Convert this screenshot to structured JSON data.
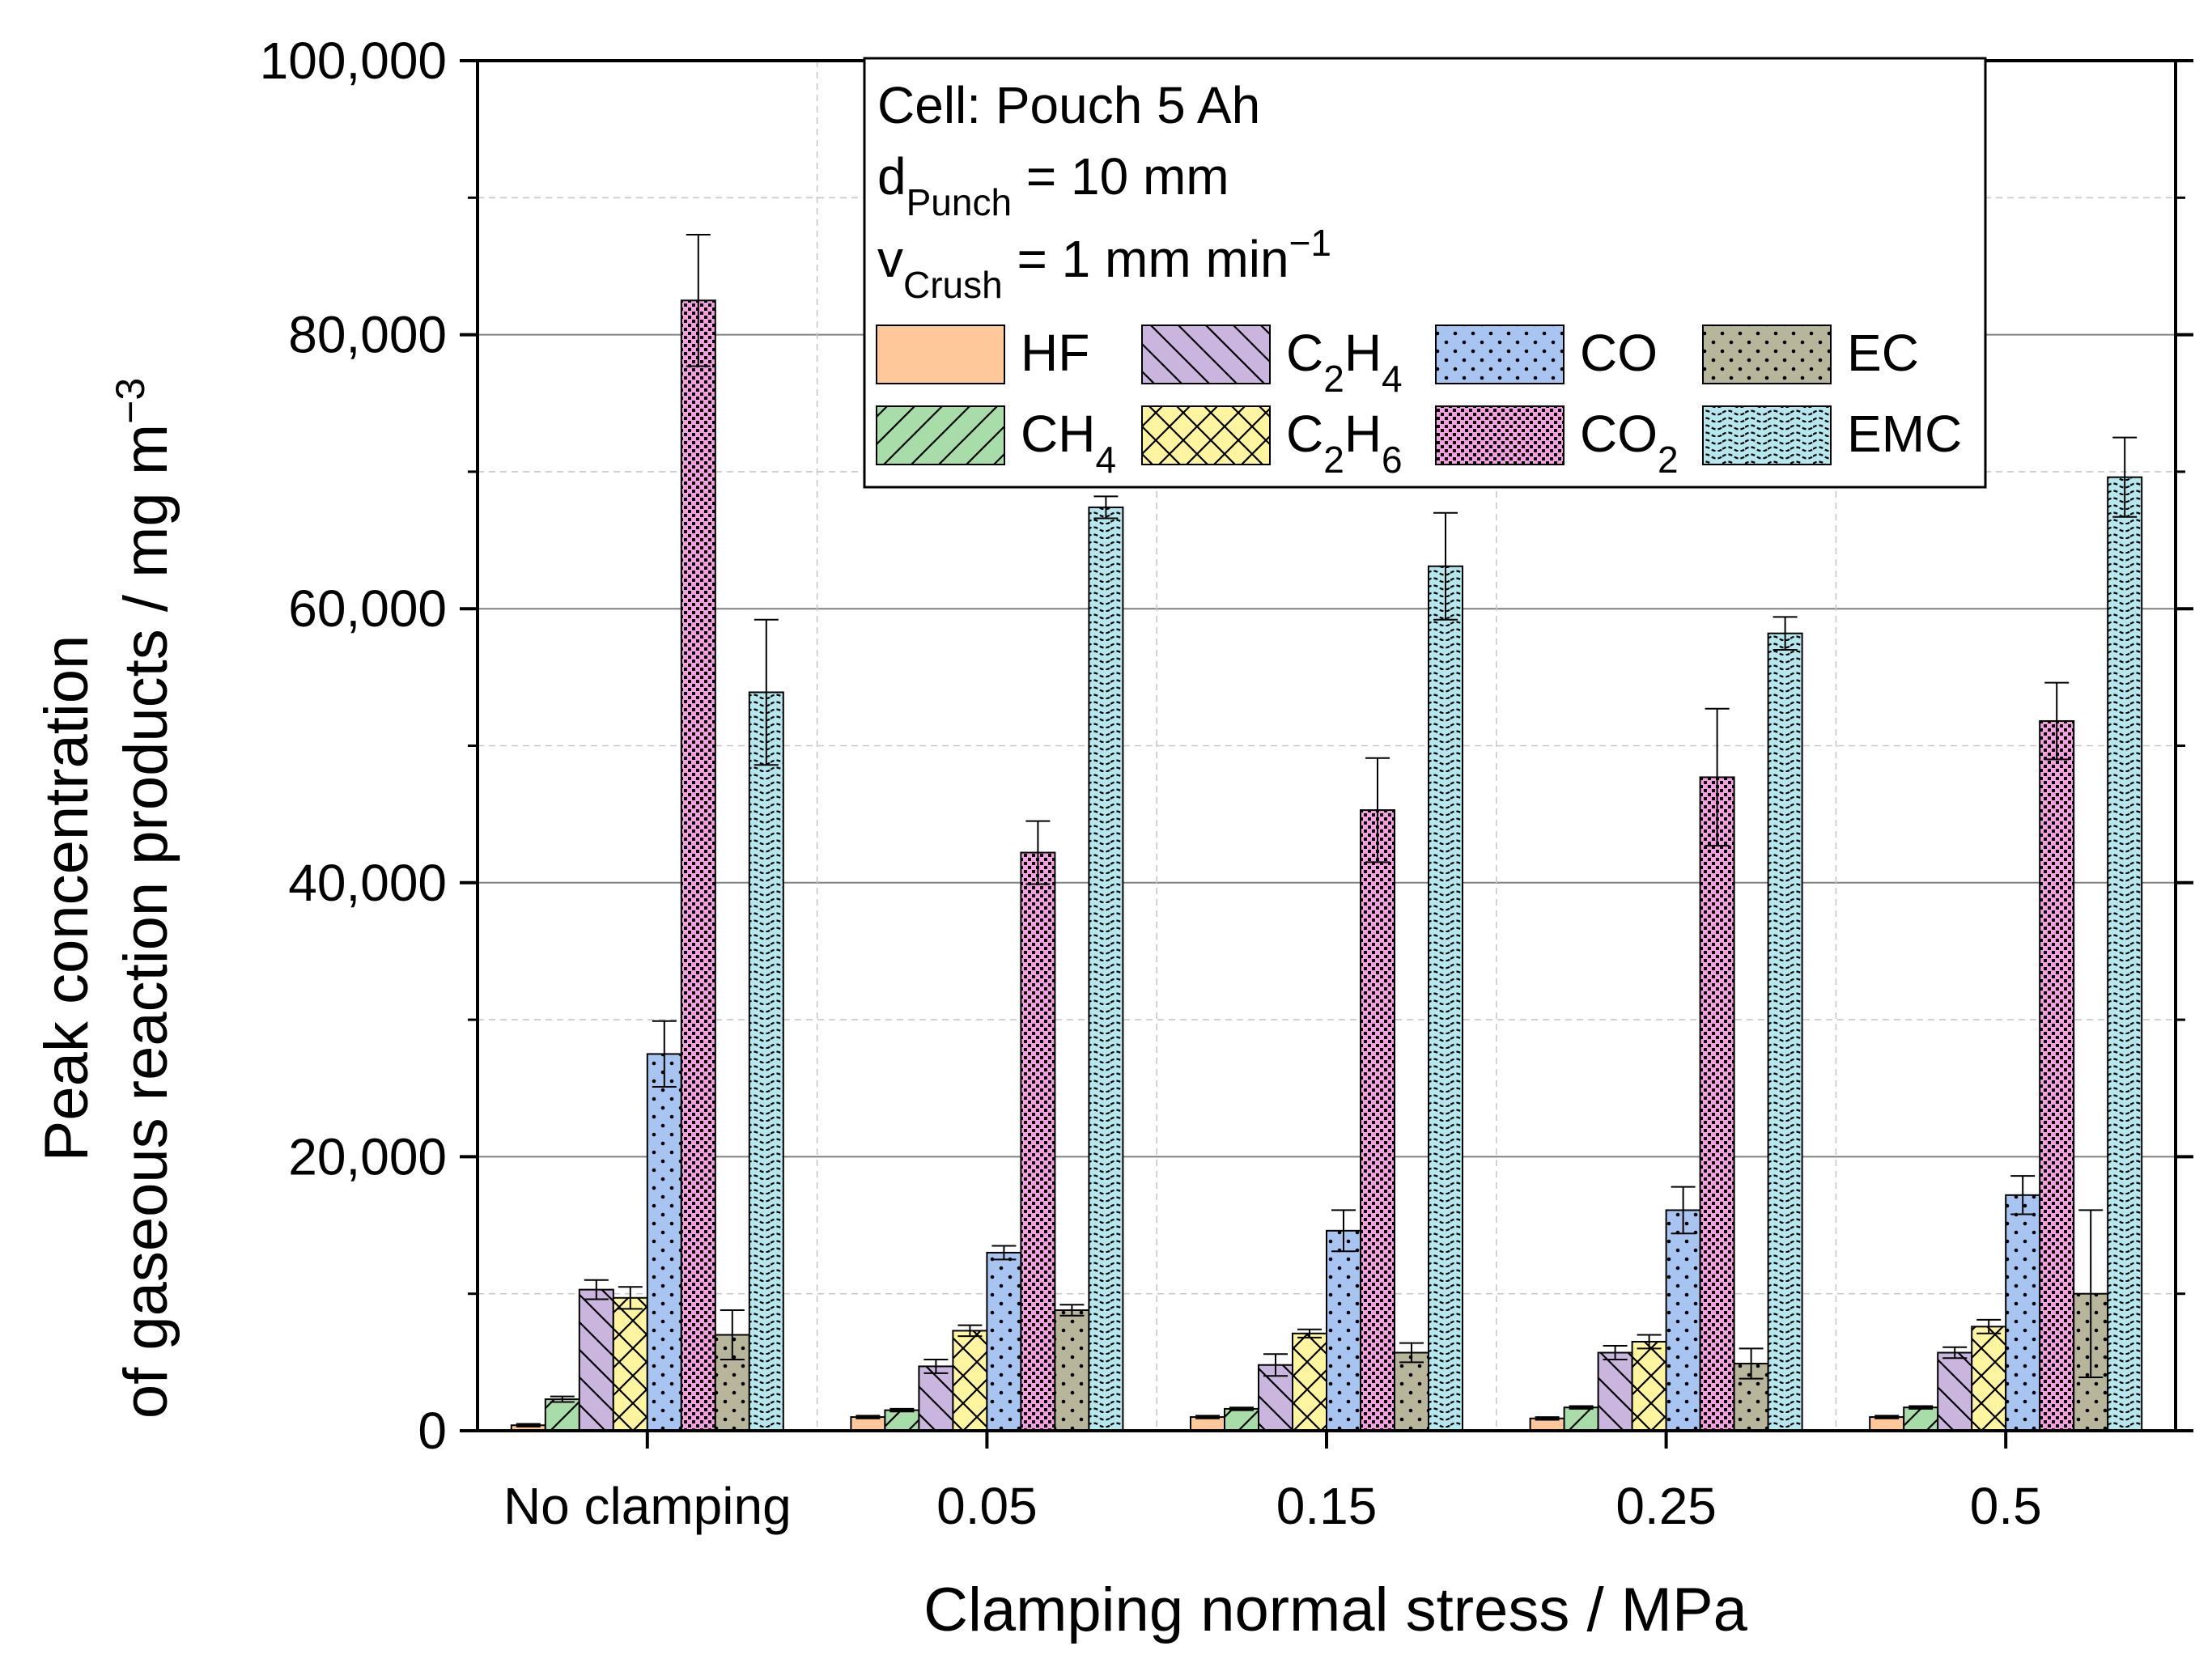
{
  "chart_data": {
    "type": "bar",
    "xlabel": "Clamping normal stress / MPa",
    "ylabel_line1": "Peak concentration",
    "ylabel_line2_prefix": "of gaseous reaction products / mg m",
    "ylabel_line2_sup": "−3",
    "ylim": [
      0,
      100000
    ],
    "yticks": [
      0,
      20000,
      40000,
      60000,
      80000,
      100000
    ],
    "ytick_labels": [
      "0",
      "20,000",
      "40,000",
      "60,000",
      "80,000",
      "100,000"
    ],
    "categories": [
      "No clamping",
      "0.05",
      "0.15",
      "0.25",
      "0.5"
    ],
    "grid": true,
    "legend_position": "top",
    "annotation": {
      "line1": "Cell: Pouch 5 Ah",
      "line2_base": "d",
      "line2_sub": "Punch",
      "line2_rest": " = 10 mm",
      "line3_base": "v",
      "line3_sub": "Crush",
      "line3_rest": " = 1 mm min",
      "line3_sup": "−1"
    },
    "series": [
      {
        "name": "HF",
        "label_base": "HF",
        "label_sub": "",
        "color": "#FFC89A",
        "pattern": "none",
        "values": [
          400,
          1000,
          1000,
          900,
          1000
        ],
        "errors": [
          100,
          100,
          100,
          100,
          100
        ]
      },
      {
        "name": "CH4",
        "label_base": "CH",
        "label_sub": "4",
        "color": "#A8DCA8",
        "pattern": "fwd",
        "values": [
          2300,
          1500,
          1600,
          1700,
          1700
        ],
        "errors": [
          200,
          100,
          100,
          100,
          100
        ]
      },
      {
        "name": "C2H4",
        "label_base": "C",
        "label_sub": "2",
        "label_base2": "H",
        "label_sub2": "4",
        "color": "#C9B5DD",
        "pattern": "back",
        "values": [
          10300,
          4700,
          4800,
          5700,
          5700
        ],
        "errors": [
          700,
          500,
          800,
          500,
          400
        ]
      },
      {
        "name": "C2H6",
        "label_base": "C",
        "label_sub": "2",
        "label_base2": "H",
        "label_sub2": "6",
        "color": "#FFF4A0",
        "pattern": "cross",
        "values": [
          9700,
          7300,
          7100,
          6500,
          7600
        ],
        "errors": [
          800,
          400,
          300,
          500,
          500
        ]
      },
      {
        "name": "CO",
        "label_base": "CO",
        "label_sub": "",
        "color": "#A8C4F0",
        "pattern": "dots",
        "values": [
          27500,
          13000,
          14600,
          16100,
          17200
        ],
        "errors": [
          2400,
          500,
          1500,
          1700,
          1400
        ]
      },
      {
        "name": "CO2",
        "label_base": "CO",
        "label_sub": "2",
        "color": "#F4A0E0",
        "pattern": "dense",
        "values": [
          82500,
          42200,
          45300,
          47700,
          51800
        ],
        "errors": [
          4800,
          2300,
          3800,
          5000,
          2800
        ]
      },
      {
        "name": "EC",
        "label_base": "EC",
        "label_sub": "",
        "color": "#B7B59A",
        "pattern": "dots",
        "values": [
          7000,
          8800,
          5700,
          4900,
          10000
        ],
        "errors": [
          1800,
          400,
          700,
          1100,
          6100
        ]
      },
      {
        "name": "EMC",
        "label_base": "EMC",
        "label_sub": "",
        "color": "#B5E8EE",
        "pattern": "wave",
        "values": [
          53900,
          67400,
          63100,
          58200,
          69600
        ],
        "errors": [
          5300,
          800,
          3900,
          1200,
          2900
        ]
      }
    ]
  }
}
